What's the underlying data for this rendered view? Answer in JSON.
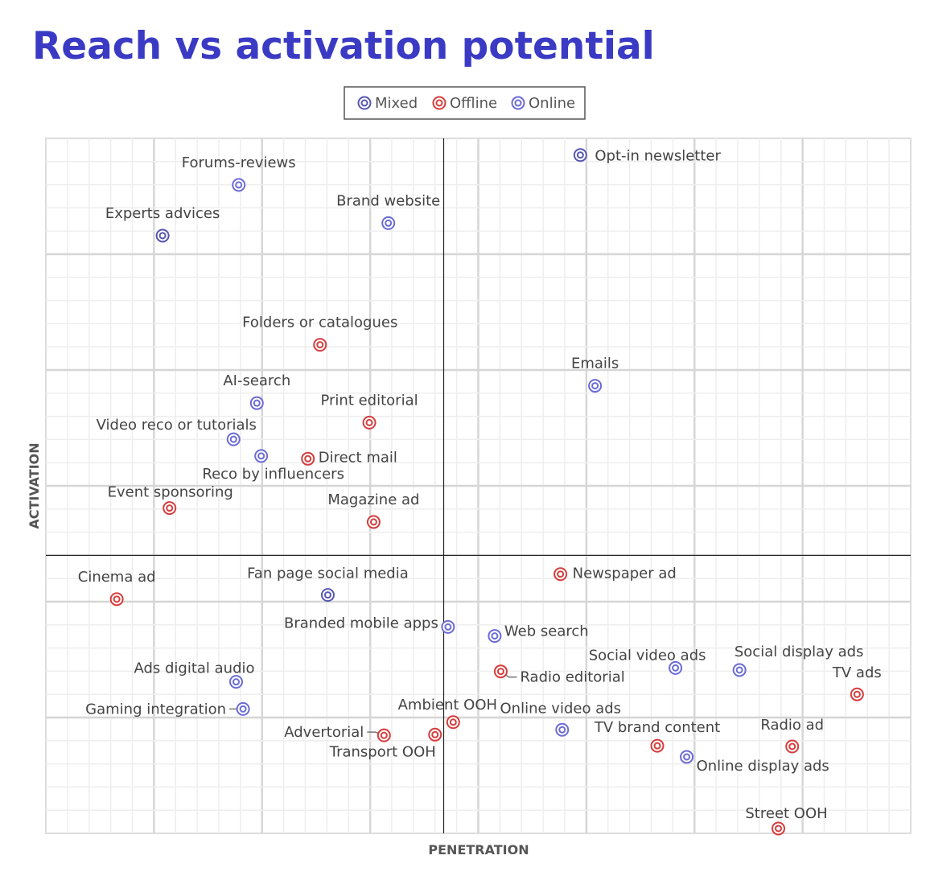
{
  "chart_data": {
    "type": "scatter",
    "title": "Reach vs activation potential",
    "xlabel": "PENETRATION",
    "ylabel": "ACTIVATION",
    "xlim": [
      0,
      100
    ],
    "ylim": [
      0,
      100
    ],
    "quadrant_lines": {
      "x": 46,
      "y": 40
    },
    "grid": true,
    "legend_position": "top-center",
    "legend": [
      {
        "name": "Mixed",
        "color": "#5757b0"
      },
      {
        "name": "Offline",
        "color": "#d63c3c"
      },
      {
        "name": "Online",
        "color": "#6b6bd6"
      }
    ],
    "points": [
      {
        "label": "Forums-reviews",
        "category": "Online",
        "x": 22.3,
        "y": 93.3
      },
      {
        "label": "Experts advices",
        "category": "Mixed",
        "x": 13.5,
        "y": 86.0
      },
      {
        "label": "Brand website",
        "category": "Online",
        "x": 39.6,
        "y": 87.8
      },
      {
        "label": "Opt-in newsletter",
        "category": "Mixed",
        "x": 61.8,
        "y": 97.6
      },
      {
        "label": "Folders or catalogues",
        "category": "Offline",
        "x": 31.7,
        "y": 70.3
      },
      {
        "label": "Emails",
        "category": "Online",
        "x": 63.5,
        "y": 64.4
      },
      {
        "label": "AI-search",
        "category": "Online",
        "x": 24.4,
        "y": 61.9
      },
      {
        "label": "Print editorial",
        "category": "Offline",
        "x": 37.4,
        "y": 59.1
      },
      {
        "label": "Video reco or tutorials",
        "category": "Online",
        "x": 21.7,
        "y": 56.7
      },
      {
        "label": "Reco by influencers",
        "category": "Online",
        "x": 24.9,
        "y": 54.3
      },
      {
        "label": "Direct mail",
        "category": "Offline",
        "x": 30.3,
        "y": 53.9
      },
      {
        "label": "Event sponsoring",
        "category": "Offline",
        "x": 14.3,
        "y": 46.8
      },
      {
        "label": "Magazine ad",
        "category": "Offline",
        "x": 37.9,
        "y": 44.8
      },
      {
        "label": "Cinema ad",
        "category": "Offline",
        "x": 8.2,
        "y": 33.7
      },
      {
        "label": "Fan page social media",
        "category": "Mixed",
        "x": 32.6,
        "y": 34.3
      },
      {
        "label": "Newspaper ad",
        "category": "Offline",
        "x": 59.5,
        "y": 37.3
      },
      {
        "label": "Branded mobile apps",
        "category": "Online",
        "x": 46.5,
        "y": 29.7
      },
      {
        "label": "Web search",
        "category": "Online",
        "x": 51.9,
        "y": 28.4
      },
      {
        "label": "Social video ads",
        "category": "Online",
        "x": 72.8,
        "y": 23.8
      },
      {
        "label": "Social display ads",
        "category": "Online",
        "x": 80.2,
        "y": 23.5
      },
      {
        "label": "Radio editorial",
        "category": "Offline",
        "x": 52.6,
        "y": 23.3
      },
      {
        "label": "TV ads",
        "category": "Offline",
        "x": 93.8,
        "y": 20.0
      },
      {
        "label": "Ads digital audio",
        "category": "Online",
        "x": 22.0,
        "y": 21.8
      },
      {
        "label": "Gaming integration",
        "category": "Online",
        "x": 22.8,
        "y": 17.9
      },
      {
        "label": "Ambient OOH",
        "category": "Offline",
        "x": 47.1,
        "y": 16.0
      },
      {
        "label": "Online video ads",
        "category": "Online",
        "x": 59.7,
        "y": 14.9
      },
      {
        "label": "Advertorial",
        "category": "Offline",
        "x": 39.1,
        "y": 14.1
      },
      {
        "label": "Transport OOH",
        "category": "Offline",
        "x": 45.0,
        "y": 14.2
      },
      {
        "label": "TV brand content",
        "category": "Offline",
        "x": 70.7,
        "y": 12.6
      },
      {
        "label": "Radio ad",
        "category": "Offline",
        "x": 86.3,
        "y": 12.5
      },
      {
        "label": "Online display ads",
        "category": "Online",
        "x": 74.1,
        "y": 11.0
      },
      {
        "label": "Street OOH",
        "category": "Offline",
        "x": 84.7,
        "y": 0.7
      }
    ]
  }
}
